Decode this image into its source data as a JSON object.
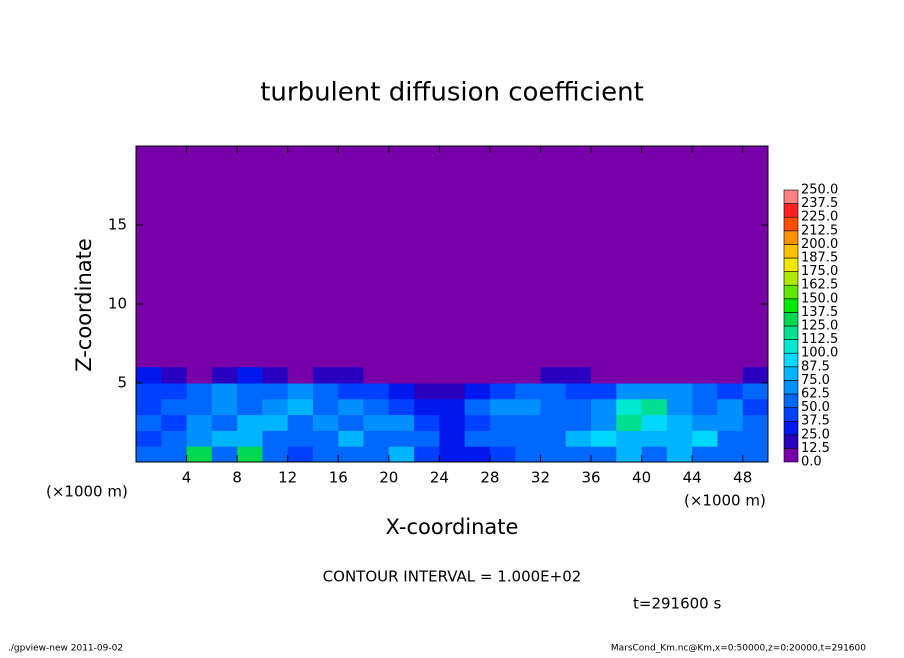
{
  "chart_data": {
    "type": "contour",
    "title": "turbulent diffusion coefficient",
    "xlabel": "X-coordinate",
    "ylabel": "Z-coordinate",
    "x_unit": "(×1000 m)",
    "xlim": [
      0,
      50
    ],
    "ylim": [
      0,
      20
    ],
    "xticks": [
      4,
      8,
      12,
      16,
      20,
      24,
      28,
      32,
      36,
      40,
      44,
      48
    ],
    "yticks": [
      5,
      10,
      15
    ],
    "contour_interval": "CONTOUR INTERVAL = 1.000E+02",
    "time_label": "t=291600 s",
    "footer_left": "./gpview-new  2011-09-02",
    "footer_right": "MarsCond_Km.nc@Km,x=0:50000,z=0:20000,t=291600",
    "colorbar": {
      "levels": [
        {
          "value": 0,
          "label": "0.0"
        },
        12.5,
        {
          "value": 25,
          "label": "25.0"
        },
        37.5,
        {
          "value": 50,
          "label": "50.0"
        },
        62.5,
        {
          "value": 75,
          "label": "75.0"
        },
        87.5,
        {
          "value": 100,
          "label": "100.0"
        },
        112.5,
        {
          "value": 125,
          "label": "125.0"
        },
        137.5,
        {
          "value": 150,
          "label": "150.0"
        },
        162.5,
        {
          "value": 175,
          "label": "175.0"
        },
        187.5,
        {
          "value": 200,
          "label": "200.0"
        },
        212.5,
        {
          "value": 225,
          "label": "225.0"
        },
        237.5,
        {
          "value": 250,
          "label": "250.0"
        }
      ],
      "colors": [
        "#7800a8",
        "#2a00c0",
        "#0018f0",
        "#0040ff",
        "#0068ff",
        "#0090ff",
        "#00b4ff",
        "#00d8ff",
        "#00e8d0",
        "#00e090",
        "#00d850",
        "#00e800",
        "#60e800",
        "#b0e800",
        "#f0e800",
        "#ffc000",
        "#ff9000",
        "#ff5000",
        "#ff2020",
        "#ff8080"
      ]
    },
    "field": {
      "x_edges": [
        0,
        2,
        4,
        6,
        8,
        10,
        12,
        14,
        16,
        18,
        20,
        22,
        24,
        26,
        28,
        30,
        32,
        34,
        36,
        38,
        40,
        42,
        44,
        46,
        48,
        50
      ],
      "z_edges": [
        0,
        1,
        2,
        3,
        4,
        5,
        6
      ],
      "values": [
        [
          50,
          60,
          125,
          60,
          125,
          60,
          40,
          50,
          60,
          50,
          75,
          40,
          25,
          25,
          40,
          60,
          50,
          50,
          60,
          75,
          60,
          75,
          60,
          60,
          50
        ],
        [
          40,
          50,
          62.5,
          75,
          75,
          50,
          60,
          50,
          75,
          50,
          50,
          50,
          25,
          50,
          60,
          60,
          60,
          75,
          87.5,
          75,
          75,
          75,
          87.5,
          60,
          50
        ],
        [
          50,
          40,
          62.5,
          60,
          75,
          75,
          50,
          62.5,
          50,
          62.5,
          62.5,
          37.5,
          25,
          37.5,
          50,
          50,
          50,
          50,
          62.5,
          112.5,
          87.5,
          75,
          62.5,
          62.5,
          50
        ],
        [
          37.5,
          50,
          50,
          62.5,
          50,
          62.5,
          75,
          50,
          62.5,
          50,
          37.5,
          25,
          25,
          50,
          62.5,
          62.5,
          50,
          50,
          62.5,
          100,
          112.5,
          62.5,
          50,
          62.5,
          37.5
        ],
        [
          37.5,
          37.5,
          50,
          62.5,
          50,
          50,
          62.5,
          50,
          37.5,
          37.5,
          25,
          12.5,
          12.5,
          25,
          37.5,
          50,
          50,
          37.5,
          37.5,
          62.5,
          62.5,
          62.5,
          50,
          37.5,
          50
        ],
        [
          25,
          12.5,
          0,
          12.5,
          25,
          12.5,
          0,
          12.5,
          12.5,
          0,
          0,
          0,
          0,
          0,
          0,
          0,
          12.5,
          12.5,
          0,
          0,
          0,
          0,
          0,
          0,
          12.5
        ]
      ]
    }
  }
}
